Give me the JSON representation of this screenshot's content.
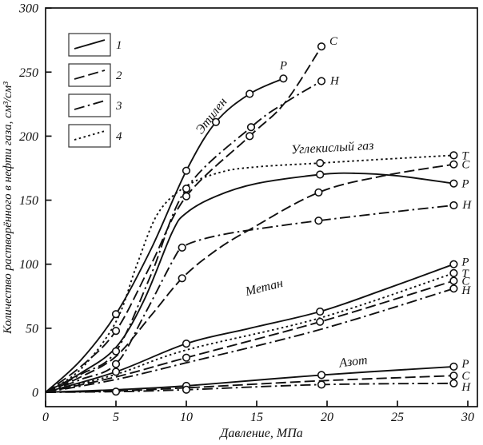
{
  "figure": {
    "background": "#ffffff",
    "ink": "#111111",
    "frame_color": "#333333"
  },
  "chart_data": {
    "type": "line",
    "title": "",
    "xlabel": "Давление, МПа",
    "ylabel": "Количество растворённого в нефти газа, см³/см³",
    "xticks": [
      0,
      5,
      10,
      15,
      20,
      25,
      30
    ],
    "yticks": [
      0,
      50,
      100,
      150,
      200,
      250,
      300
    ],
    "xlim": [
      0,
      30.7
    ],
    "ylim": [
      -11,
      300
    ],
    "grid": false,
    "legend": {
      "position": "top-left",
      "items": [
        {
          "label": "1",
          "style": "solid"
        },
        {
          "label": "2",
          "style": "dashed"
        },
        {
          "label": "3",
          "style": "dashdot"
        },
        {
          "label": "4",
          "style": "dotted"
        }
      ]
    },
    "group_labels": [
      {
        "text": "Этилен",
        "x": 12.0,
        "y": 214,
        "rotation": -52
      },
      {
        "text": "Углекислый газ",
        "x": 20.4,
        "y": 188,
        "rotation": -3
      },
      {
        "text": "Метан",
        "x": 15.6,
        "y": 79,
        "rotation": -14
      },
      {
        "text": "Азот",
        "x": 21.9,
        "y": 21,
        "rotation": -7
      }
    ],
    "series": [
      {
        "id": "ethylene-p",
        "gas": "Этилен",
        "oil": "P",
        "style": "solid",
        "points": [
          [
            0,
            0
          ],
          [
            2.5,
            25
          ],
          [
            5,
            61
          ],
          [
            7.5,
            112
          ],
          [
            10,
            173
          ],
          [
            12.1,
            211
          ],
          [
            14.5,
            233
          ],
          [
            16.9,
            245
          ]
        ],
        "markers": [
          [
            5,
            61
          ],
          [
            10,
            173
          ],
          [
            12.1,
            211
          ],
          [
            14.5,
            233
          ],
          [
            16.9,
            245
          ]
        ],
        "end_label": "P",
        "label_dx": 0,
        "label_dy": -12,
        "label_anchor": "middle"
      },
      {
        "id": "ethylene-c",
        "gas": "Этилен",
        "oil": "C",
        "style": "dashed",
        "points": [
          [
            0,
            0
          ],
          [
            2.5,
            20
          ],
          [
            5,
            48
          ],
          [
            7.5,
            100
          ],
          [
            10,
            153
          ],
          [
            14.5,
            200
          ],
          [
            17,
            226
          ],
          [
            19.6,
            270
          ]
        ],
        "markers": [
          [
            5,
            48
          ],
          [
            10,
            153
          ],
          [
            14.5,
            200
          ],
          [
            19.6,
            270
          ]
        ],
        "end_label": "C",
        "label_dx": 10,
        "label_dy": -2
      },
      {
        "id": "ethylene-h",
        "gas": "Этилен",
        "oil": "H",
        "style": "dashdot",
        "points": [
          [
            0,
            0
          ],
          [
            2.5,
            14
          ],
          [
            5,
            32
          ],
          [
            7.5,
            92
          ],
          [
            10,
            159
          ],
          [
            14.6,
            207
          ],
          [
            17,
            226
          ],
          [
            19.6,
            243
          ]
        ],
        "markers": [
          [
            5,
            32
          ],
          [
            10,
            159
          ],
          [
            14.6,
            207
          ],
          [
            19.6,
            243
          ]
        ],
        "end_label": "H",
        "label_dx": 11,
        "label_dy": 4
      },
      {
        "id": "co2-t",
        "gas": "Углекислый газ",
        "oil": "T",
        "style": "dotted",
        "points": [
          [
            0,
            0
          ],
          [
            2.5,
            18
          ],
          [
            5,
            55
          ],
          [
            6.5,
            100
          ],
          [
            8,
            140
          ],
          [
            10,
            161
          ],
          [
            12.5,
            172
          ],
          [
            15,
            176
          ],
          [
            19.5,
            179
          ],
          [
            24,
            182
          ],
          [
            29,
            185
          ]
        ],
        "markers": [
          [
            19.5,
            179
          ],
          [
            29,
            185
          ]
        ],
        "end_label": "T",
        "label_dx": 10,
        "label_dy": 5
      },
      {
        "id": "co2-c",
        "gas": "Углекислый газ",
        "oil": "C",
        "style": "dashed",
        "points": [
          [
            0,
            0
          ],
          [
            2.5,
            12
          ],
          [
            5,
            28
          ],
          [
            7.5,
            60
          ],
          [
            9.7,
            89
          ],
          [
            12,
            110
          ],
          [
            14.5,
            127
          ],
          [
            19.4,
            156
          ],
          [
            24,
            169
          ],
          [
            29,
            178
          ]
        ],
        "markers": [
          [
            9.7,
            89
          ],
          [
            19.4,
            156
          ],
          [
            29,
            178
          ]
        ],
        "end_label": "C",
        "label_dx": 10,
        "label_dy": 5
      },
      {
        "id": "co2-p",
        "gas": "Углекислый газ",
        "oil": "P",
        "style": "solid",
        "points": [
          [
            0,
            0
          ],
          [
            2.5,
            15
          ],
          [
            5,
            35
          ],
          [
            7,
            72
          ],
          [
            9,
            125
          ],
          [
            10,
            140
          ],
          [
            12.1,
            153
          ],
          [
            15,
            163
          ],
          [
            19.5,
            170
          ],
          [
            22,
            171
          ],
          [
            25,
            169
          ],
          [
            29,
            163
          ]
        ],
        "markers": [
          [
            19.5,
            170
          ],
          [
            29,
            163
          ]
        ],
        "end_label": "P",
        "label_dx": 10,
        "label_dy": 5
      },
      {
        "id": "co2-h",
        "gas": "Углекислый газ",
        "oil": "H",
        "style": "dashdot",
        "points": [
          [
            0,
            0
          ],
          [
            2.5,
            10
          ],
          [
            5,
            22
          ],
          [
            7,
            60
          ],
          [
            9,
            102
          ],
          [
            9.7,
            113
          ],
          [
            11,
            119
          ],
          [
            13,
            124
          ],
          [
            16,
            129
          ],
          [
            19.4,
            134
          ],
          [
            24,
            140
          ],
          [
            29,
            146
          ]
        ],
        "markers": [
          [
            5,
            22
          ],
          [
            9.7,
            113
          ],
          [
            19.4,
            134
          ],
          [
            29,
            146
          ]
        ],
        "end_label": "H",
        "label_dx": 11,
        "label_dy": 4
      },
      {
        "id": "methane-p",
        "gas": "Метан",
        "oil": "P",
        "style": "solid",
        "points": [
          [
            0,
            0
          ],
          [
            5,
            16
          ],
          [
            10,
            38
          ],
          [
            14.5,
            50
          ],
          [
            19.5,
            63
          ],
          [
            24,
            80
          ],
          [
            29,
            100
          ]
        ],
        "markers": [
          [
            5,
            16
          ],
          [
            10,
            38
          ],
          [
            19.5,
            63
          ],
          [
            29,
            100
          ]
        ],
        "end_label": "P",
        "label_dx": 10,
        "label_dy": 2
      },
      {
        "id": "methane-t",
        "gas": "Метан",
        "oil": "T",
        "style": "dotted",
        "points": [
          [
            0,
            0
          ],
          [
            5,
            14
          ],
          [
            10,
            33
          ],
          [
            19.5,
            58
          ],
          [
            29,
            93
          ]
        ],
        "markers": [
          [
            29,
            93
          ]
        ],
        "end_label": "T",
        "label_dx": 10,
        "label_dy": 5
      },
      {
        "id": "methane-c",
        "gas": "Метан",
        "oil": "C",
        "style": "dashed",
        "points": [
          [
            0,
            0
          ],
          [
            5,
            12
          ],
          [
            10,
            27
          ],
          [
            19.5,
            55
          ],
          [
            29,
            87
          ]
        ],
        "markers": [
          [
            10,
            27
          ],
          [
            19.5,
            55
          ],
          [
            29,
            87
          ]
        ],
        "end_label": "C",
        "label_dx": 10,
        "label_dy": 5
      },
      {
        "id": "methane-h",
        "gas": "Метан",
        "oil": "H",
        "style": "dashdot",
        "points": [
          [
            0,
            0
          ],
          [
            5,
            10
          ],
          [
            10,
            23
          ],
          [
            19.5,
            49
          ],
          [
            29,
            81
          ]
        ],
        "markers": [
          [
            29,
            81
          ]
        ],
        "end_label": "H",
        "label_dx": 10,
        "label_dy": 7
      },
      {
        "id": "nitrogen-p",
        "gas": "Азот",
        "oil": "P",
        "style": "solid",
        "points": [
          [
            0,
            0
          ],
          [
            5,
            2
          ],
          [
            10,
            5
          ],
          [
            19.6,
            13.5
          ],
          [
            29,
            20
          ]
        ],
        "markers": [
          [
            10,
            5
          ],
          [
            19.6,
            13.5
          ],
          [
            29,
            20
          ]
        ],
        "end_label": "P",
        "label_dx": 10,
        "label_dy": 1
      },
      {
        "id": "nitrogen-c",
        "gas": "Азот",
        "oil": "C",
        "style": "dashed",
        "points": [
          [
            0,
            0
          ],
          [
            5,
            1
          ],
          [
            10,
            3.5
          ],
          [
            19.6,
            9
          ],
          [
            29,
            13
          ]
        ],
        "markers": [
          [
            29,
            13
          ]
        ],
        "end_label": "C",
        "label_dx": 10,
        "label_dy": 5
      },
      {
        "id": "nitrogen-h",
        "gas": "Азот",
        "oil": "H",
        "style": "dashdot",
        "points": [
          [
            0,
            0
          ],
          [
            5,
            0.5
          ],
          [
            10,
            2
          ],
          [
            19.6,
            6
          ],
          [
            29,
            7
          ]
        ],
        "markers": [
          [
            5,
            0.5
          ],
          [
            10,
            2
          ],
          [
            19.6,
            6
          ],
          [
            29,
            7
          ]
        ],
        "end_label": "H",
        "label_dx": 10,
        "label_dy": 9
      }
    ]
  }
}
